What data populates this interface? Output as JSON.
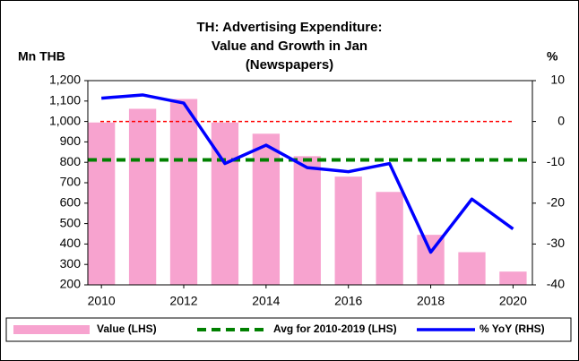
{
  "chart_data": {
    "type": "bar-line",
    "title": [
      "TH: Advertising Expenditure:",
      "Value and Growth in Jan",
      "(Newspapers)"
    ],
    "y_label": "Mn THB",
    "y2_label": "%",
    "x": [
      2010,
      2011,
      2012,
      2013,
      2014,
      2015,
      2016,
      2017,
      2018,
      2019,
      2020
    ],
    "xlim": [
      2009.67,
      2020.47
    ],
    "xticks": [
      2010,
      2012,
      2014,
      2016,
      2018,
      2020
    ],
    "ylim": [
      200,
      1200
    ],
    "yticks": [
      200,
      300,
      400,
      500,
      600,
      700,
      800,
      900,
      {
        "value": 1000,
        "label": "1,000"
      },
      {
        "value": 1100,
        "label": "1,100"
      },
      {
        "value": 1200,
        "label": "1,200"
      }
    ],
    "y2lim": [
      -40,
      10
    ],
    "y2ticks": [
      -40,
      -30,
      -20,
      -10,
      0,
      10
    ],
    "reference_line": {
      "axis": "y2",
      "value": 0,
      "color": "#ff0000"
    },
    "series": [
      {
        "name": "Value (LHS)",
        "kind": "bar",
        "color": "#f7a3cf",
        "values": [
          995,
          1062,
          1110,
          995,
          940,
          830,
          730,
          655,
          445,
          360,
          265
        ]
      },
      {
        "name": "Avg for 2010-2019 (LHS)",
        "kind": "hline",
        "color": "#008000",
        "value": 812
      },
      {
        "name": "% YoY (RHS)",
        "kind": "line",
        "axis": "y2",
        "color": "#0000ff",
        "values": [
          5.7,
          6.5,
          4.5,
          -10.3,
          -5.8,
          -11.3,
          -12.3,
          -10.3,
          -32,
          -19,
          -26.3
        ]
      }
    ]
  }
}
